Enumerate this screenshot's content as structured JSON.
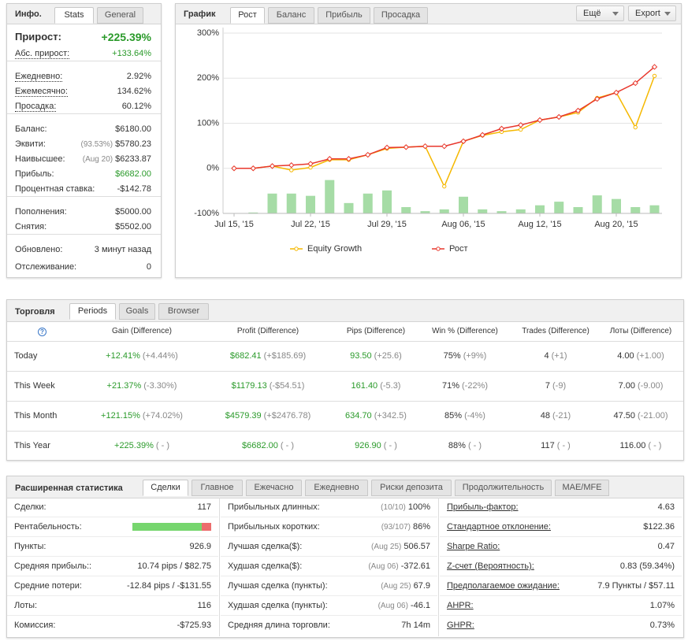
{
  "info": {
    "title": "Инфо.",
    "tabs": [
      "Stats",
      "General"
    ],
    "groups": [
      [
        {
          "label": "Прирост:",
          "value": "+225.39%",
          "color": "#2a9a2a"
        },
        {
          "label": "Абс. прирост:",
          "value": "+133.64%",
          "color": "#2a9a2a"
        }
      ],
      [
        {
          "label": "Ежедневно:",
          "value": "2.92%"
        },
        {
          "label": "Ежемесячно:",
          "value": "134.62%"
        },
        {
          "label": "Просадка:",
          "value": "60.12%"
        }
      ],
      [
        {
          "label": "Баланс:",
          "value": "$6180.00"
        },
        {
          "label": "Эквити:",
          "note": "(93.53%)",
          "value": "$5780.23"
        },
        {
          "label": "Наивысшее:",
          "note": "(Aug 20)",
          "value": "$6233.87"
        },
        {
          "label": "Прибыль:",
          "value": "$6682.00",
          "color": "#2a9a2a"
        },
        {
          "label": "Процентная ставка:",
          "value": "-$142.78"
        }
      ],
      [
        {
          "label": "Пополнения:",
          "value": "$5000.00"
        },
        {
          "label": "Снятия:",
          "value": "$5502.00"
        }
      ],
      [
        {
          "label": "Обновлено:",
          "value": "3 минут назад"
        },
        {
          "label": "Отслеживание:",
          "value": "0"
        }
      ]
    ]
  },
  "graph": {
    "title": "График",
    "tabs": [
      "Рост",
      "Баланс",
      "Прибыль",
      "Просадка"
    ],
    "buttons": [
      "Ещё",
      "Export"
    ]
  },
  "chart_data": {
    "type": "line",
    "categories": [
      "Jul 15, '15",
      null,
      null,
      null,
      "Jul 22, '15",
      null,
      null,
      null,
      "Jul 29, '15",
      null,
      null,
      null,
      "Aug 06, '15",
      null,
      null,
      null,
      "Aug 12, '15",
      null,
      null,
      null,
      "Aug 20, '15",
      null,
      null
    ],
    "series": [
      {
        "name": "Equity Growth",
        "color": "#f5b800",
        "values": [
          0,
          0,
          5,
          -4,
          2,
          19,
          19,
          30,
          44,
          47,
          49,
          -40,
          60,
          73,
          81,
          86,
          107,
          114,
          124,
          156,
          168,
          91,
          205
        ]
      },
      {
        "name": "Рост",
        "color": "#e8372c",
        "values": [
          0,
          0,
          5,
          7,
          10,
          21,
          21,
          30,
          46,
          47,
          49,
          49,
          60,
          74,
          88,
          96,
          107,
          114,
          128,
          154,
          168,
          189,
          225
        ]
      }
    ],
    "bar_series": {
      "color": "#a6dca6",
      "values": [
        null,
        -98,
        -56,
        -56,
        -61,
        -26,
        -77,
        -56,
        -49,
        -86,
        -95,
        -91,
        -63,
        -91,
        -95,
        -91,
        -82,
        -74,
        -86,
        -60,
        -68,
        -86,
        -82
      ]
    },
    "ylim": [
      -100,
      300
    ],
    "yticks": [
      {
        "value": -100,
        "label": "-100%"
      },
      {
        "value": 0,
        "label": "0%"
      },
      {
        "value": 100,
        "label": "100%"
      },
      {
        "value": 200,
        "label": "200%"
      },
      {
        "value": 300,
        "label": "300%"
      }
    ],
    "grid": true
  },
  "trading": {
    "title": "Торговля",
    "tabs": [
      "Periods",
      "Goals",
      "Browser"
    ],
    "columns": [
      {
        "header": "Gain (Difference)",
        "color": "#2a9a2a"
      },
      {
        "header": "Profit (Difference)",
        "color": "#2a9a2a"
      },
      {
        "header": "Pips (Difference)",
        "color": "#2a9a2a"
      },
      {
        "header": "Win % (Difference)",
        "color": "#333333"
      },
      {
        "header": "Trades (Difference)",
        "color": "#333333"
      },
      {
        "header": "Лоты (Difference)",
        "color": "#333333"
      }
    ],
    "rows": [
      {
        "period": "Today",
        "cells": [
          {
            "main": "+12.41%",
            "diff": "(+4.44%)"
          },
          {
            "main": "$682.41",
            "diff": "(+$185.69)"
          },
          {
            "main": "93.50",
            "diff": "(+25.6)"
          },
          {
            "main": "75%",
            "diff": "(+9%)"
          },
          {
            "main": "4",
            "diff": "(+1)"
          },
          {
            "main": "4.00",
            "diff": "(+1.00)"
          }
        ]
      },
      {
        "period": "This Week",
        "cells": [
          {
            "main": "+21.37%",
            "diff": "(-3.30%)"
          },
          {
            "main": "$1179.13",
            "diff": "(-$54.51)"
          },
          {
            "main": "161.40",
            "diff": "(-5.3)"
          },
          {
            "main": "71%",
            "diff": "(-22%)"
          },
          {
            "main": "7",
            "diff": "(-9)"
          },
          {
            "main": "7.00",
            "diff": "(-9.00)"
          }
        ]
      },
      {
        "period": "This Month",
        "cells": [
          {
            "main": "+121.15%",
            "diff": "(+74.02%)"
          },
          {
            "main": "$4579.39",
            "diff": "(+$2476.78)"
          },
          {
            "main": "634.70",
            "diff": "(+342.5)"
          },
          {
            "main": "85%",
            "diff": "(-4%)"
          },
          {
            "main": "48",
            "diff": "(-21)"
          },
          {
            "main": "47.50",
            "diff": "(-21.00)"
          }
        ]
      },
      {
        "period": "This Year",
        "cells": [
          {
            "main": "+225.39%",
            "diff": "( - )"
          },
          {
            "main": "$6682.00",
            "diff": "( - )"
          },
          {
            "main": "926.90",
            "diff": "( - )"
          },
          {
            "main": "88%",
            "diff": "( - )"
          },
          {
            "main": "117",
            "diff": "( - )"
          },
          {
            "main": "116.00",
            "diff": "( - )"
          }
        ]
      }
    ]
  },
  "extended": {
    "title": "Расширенная статистика",
    "tabs": [
      "Сделки",
      "Главное",
      "Ежечасно",
      "Ежедневно",
      "Риски депозита",
      "Продолжительность",
      "MAE/MFE"
    ],
    "columns": [
      [
        {
          "label": "Сделки:",
          "value": "117"
        },
        {
          "label": "Рентабельность:",
          "bar": {
            "values": [
              88,
              12
            ],
            "colors": [
              "#76d66e",
              "#ec6d6d"
            ]
          }
        },
        {
          "label": "Пункты:",
          "value": "926.9"
        },
        {
          "label": "Средняя прибыль::",
          "value": "10.74 pips / $82.75"
        },
        {
          "label": "Средние потери:",
          "value": "-12.84 pips / -$131.55"
        },
        {
          "label": "Лоты:",
          "value": "116"
        },
        {
          "label": "Комиссия:",
          "value": "-$725.93"
        }
      ],
      [
        {
          "label": "Прибыльных длинных:",
          "note": "(10/10)",
          "value": "100%"
        },
        {
          "label": "Прибыльных коротких:",
          "note": "(93/107)",
          "value": "86%"
        },
        {
          "label": "Лучшая сделка($):",
          "note": "(Aug 25)",
          "value": "506.57"
        },
        {
          "label": "Худшая сделка($):",
          "note": "(Aug 06)",
          "value": "-372.61"
        },
        {
          "label": "Лучшая сделка (пункты):",
          "note": "(Aug 25)",
          "value": "67.9"
        },
        {
          "label": "Худшая сделка (пункты):",
          "note": "(Aug 06)",
          "value": "-46.1"
        },
        {
          "label": "Средняя длина торговли:",
          "value": "7h 14m"
        }
      ],
      [
        {
          "label": "Прибыль-фактор:",
          "value": "4.63"
        },
        {
          "label": "Стандартное отклонение:",
          "value": "$122.36"
        },
        {
          "label": "Sharpe Ratio:",
          "value": "0.47"
        },
        {
          "label": "Z-счет (Вероятность):",
          "value": "0.83 (59.34%)"
        },
        {
          "label": "Предполагаемое ожидание:",
          "value": "7.9 Пункты / $57.11"
        },
        {
          "label": "AHPR:",
          "value": "1.07%"
        },
        {
          "label": "GHPR:",
          "value": "0.73%"
        }
      ]
    ]
  }
}
